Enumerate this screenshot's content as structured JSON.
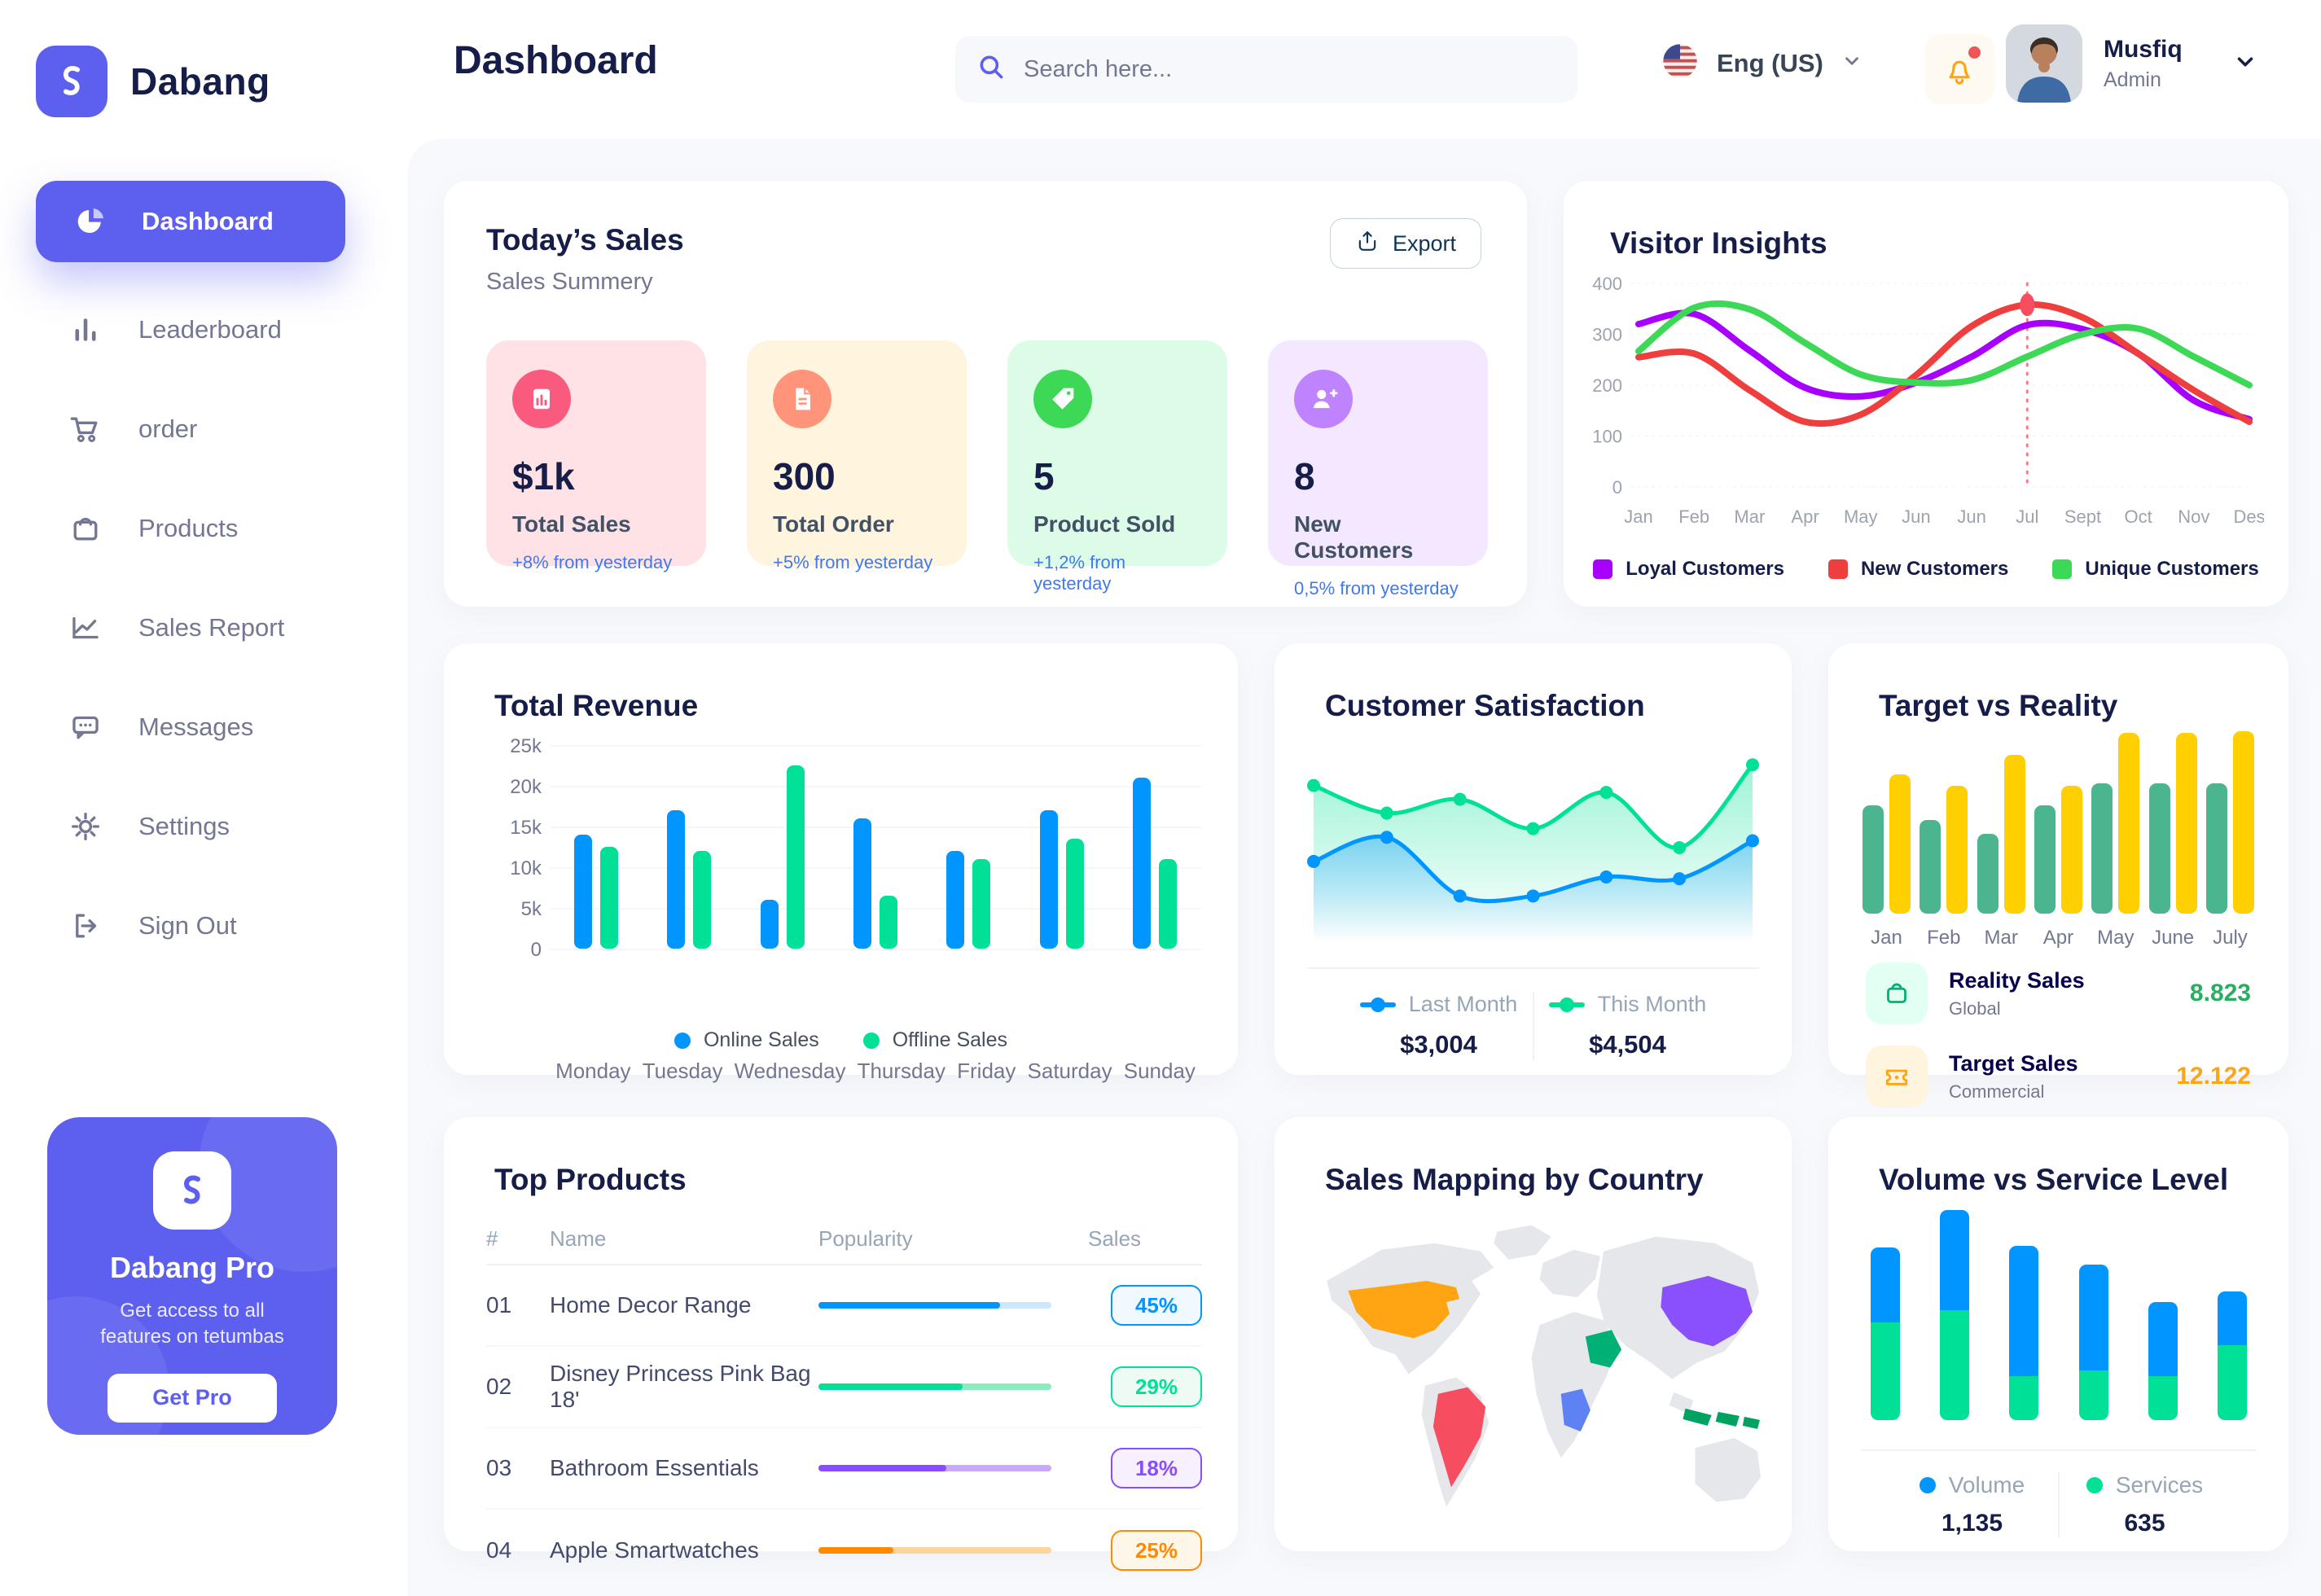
{
  "app": {
    "accent": "#5D5FEF",
    "navy": "#151D48",
    "panel_bg": "#F8F9FC"
  },
  "sidebar": {
    "logo_text": "Dabang",
    "items": [
      {
        "label": "Dashboard",
        "icon": "pie",
        "active": true
      },
      {
        "label": "Leaderboard",
        "icon": "bars",
        "active": false
      },
      {
        "label": "order",
        "icon": "cart",
        "active": false
      },
      {
        "label": "Products",
        "icon": "bag",
        "active": false
      },
      {
        "label": "Sales Report",
        "icon": "chart",
        "active": false
      },
      {
        "label": "Messages",
        "icon": "chat",
        "active": false
      },
      {
        "label": "Settings",
        "icon": "gear",
        "active": false
      },
      {
        "label": "Sign Out",
        "icon": "logout",
        "active": false
      }
    ],
    "pro_card": {
      "title": "Dabang Pro",
      "subtitle": "Get access to all features on tetumbas",
      "button": "Get Pro"
    }
  },
  "header": {
    "title": "Dashboard",
    "search_placeholder": "Search here...",
    "language": "Eng (US)",
    "user": {
      "name": "Musfiq",
      "role": "Admin"
    }
  },
  "todays_sales": {
    "title": "Today’s Sales",
    "subtitle": "Sales Summery",
    "export_label": "Export",
    "cards": [
      {
        "value": "$1k",
        "label": "Total Sales",
        "delta": "+8% from yesterday",
        "bg": "#FFE2E5",
        "icon_bg": "#FA5A7D",
        "icon": "chart-doc"
      },
      {
        "value": "300",
        "label": "Total Order",
        "delta": "+5% from yesterday",
        "bg": "#FFF4DE",
        "icon_bg": "#FF947A",
        "icon": "file"
      },
      {
        "value": "5",
        "label": "Product Sold",
        "delta": "+1,2% from yesterday",
        "bg": "#DCFCE7",
        "icon_bg": "#3CD856",
        "icon": "tag"
      },
      {
        "value": "8",
        "label": "New Customers",
        "delta": "0,5% from yesterday",
        "bg": "#F3E8FF",
        "icon_bg": "#BF83FF",
        "icon": "user-plus"
      }
    ]
  },
  "chart_data": [
    {
      "name": "visitor_insights",
      "type": "line",
      "title": "Visitor Insights",
      "x_labels": [
        "Jan",
        "Feb",
        "Mar",
        "Apr",
        "May",
        "Jun",
        "Jun",
        "Jul",
        "Sept",
        "Oct",
        "Nov",
        "Des"
      ],
      "ylim": [
        0,
        400
      ],
      "yticks": [
        0,
        100,
        200,
        300,
        400
      ],
      "grid": true,
      "legend_position": "bottom",
      "series": [
        {
          "name": "Loyal Customers",
          "color": "#A700FF",
          "values": [
            320,
            340,
            268,
            195,
            178,
            205,
            256,
            318,
            310,
            262,
            170,
            133
          ]
        },
        {
          "name": "New Customers",
          "color": "#EF3E3E",
          "values": [
            255,
            262,
            190,
            128,
            142,
            220,
            316,
            358,
            333,
            262,
            190,
            128
          ]
        },
        {
          "name": "Unique Customers",
          "color": "#3CD856",
          "values": [
            267,
            352,
            349,
            283,
            221,
            205,
            210,
            256,
            300,
            311,
            256,
            200
          ]
        }
      ],
      "annotation": {
        "x_index": 7,
        "x_label": "Jul",
        "series": "New Customers",
        "value": 358,
        "marker_color": "#F64E60"
      }
    },
    {
      "name": "total_revenue",
      "type": "bar",
      "title": "Total Revenue",
      "categories": [
        "Monday",
        "Tuesday",
        "Wednesday",
        "Thursday",
        "Friday",
        "Saturday",
        "Sunday"
      ],
      "ylim": [
        0,
        25000
      ],
      "yticks": [
        0,
        5000,
        10000,
        15000,
        20000,
        25000
      ],
      "ytick_labels": [
        "0",
        "5k",
        "10k",
        "15k",
        "20k",
        "25k"
      ],
      "legend_position": "bottom",
      "series": [
        {
          "name": "Online Sales",
          "color": "#0095FF",
          "values": [
            14000,
            17000,
            6000,
            16000,
            12000,
            17000,
            21000
          ]
        },
        {
          "name": "Offline Sales",
          "color": "#00E096",
          "values": [
            12500,
            12000,
            22500,
            6500,
            11000,
            13500,
            11000
          ]
        }
      ]
    },
    {
      "name": "customer_satisfaction",
      "type": "area",
      "title": "Customer Satisfaction",
      "ylim": [
        0,
        100
      ],
      "legend_position": "bottom",
      "series": [
        {
          "name": "Last Month",
          "color": "#0095FF",
          "total": "$3,004",
          "values": [
            34,
            48,
            14,
            14,
            25,
            24,
            46
          ]
        },
        {
          "name": "This Month",
          "color": "#00E096",
          "total": "$4,504",
          "values": [
            78,
            62,
            70,
            53,
            74,
            42,
            90
          ]
        }
      ]
    },
    {
      "name": "target_vs_reality",
      "type": "bar",
      "title": "Target vs Reality",
      "categories": [
        "Jan",
        "Feb",
        "Mar",
        "Apr",
        "May",
        "June",
        "July"
      ],
      "ylim": [
        0,
        14
      ],
      "series": [
        {
          "name": "Reality Sales",
          "color": "#4AB58E",
          "values": [
            8.3,
            7.2,
            6.1,
            8.3,
            10,
            10,
            10
          ]
        },
        {
          "name": "Target Sales",
          "color": "#FFCF00",
          "values": [
            10.7,
            9.8,
            12.2,
            9.8,
            13.9,
            13.9,
            14
          ]
        }
      ],
      "legend": [
        {
          "label": "Reality Sales",
          "sublabel": "Global",
          "value": "8.823",
          "value_color": "#27AE60",
          "icon": "bag-solid",
          "icon_color": "#00B074",
          "icon_bg": "#E2FFF3"
        },
        {
          "label": "Target Sales",
          "sublabel": "Commercial",
          "value": "12.122",
          "value_color": "#FFA412",
          "icon": "ticket",
          "icon_color": "#FFA412",
          "icon_bg": "#FFF4DE"
        }
      ]
    },
    {
      "name": "top_products",
      "type": "table",
      "title": "Top Products",
      "columns": [
        "#",
        "Name",
        "Popularity",
        "Sales"
      ],
      "rows": [
        {
          "id": "01",
          "name": "Home Decor Range",
          "popularity": 78,
          "sales": "45%",
          "color": "#0095FF",
          "track": "#CDE7FF",
          "badge_bg": "#F0F9FF"
        },
        {
          "id": "02",
          "name": "Disney Princess Pink Bag 18'",
          "popularity": 62,
          "sales": "29%",
          "color": "#00E096",
          "track": "#8CECC0",
          "badge_bg": "#EEFBF4"
        },
        {
          "id": "03",
          "name": "Bathroom Essentials",
          "popularity": 55,
          "sales": "18%",
          "color": "#884DFF",
          "track": "#C9A9F9",
          "badge_bg": "#F6F0FF"
        },
        {
          "id": "04",
          "name": "Apple Smartwatches",
          "popularity": 32,
          "sales": "25%",
          "color": "#FF8900",
          "track": "#FFD59E",
          "badge_bg": "#FFF6EA"
        }
      ]
    },
    {
      "name": "sales_mapping",
      "type": "map",
      "title": "Sales Mapping by Country",
      "base_color": "#E6E7EB",
      "countries": [
        {
          "name": "United States",
          "color": "#FFA412"
        },
        {
          "name": "Brazil",
          "color": "#F64E60"
        },
        {
          "name": "Saudi Arabia",
          "color": "#00B074"
        },
        {
          "name": "Congo",
          "color": "#5E81F4"
        },
        {
          "name": "China",
          "color": "#8950FC"
        },
        {
          "name": "Indonesia",
          "color": "#00A261"
        }
      ]
    },
    {
      "name": "volume_vs_service",
      "type": "bar-stacked",
      "title": "Volume vs Service Level",
      "legend_position": "bottom",
      "series": [
        {
          "name": "Volume",
          "color": "#0095FF",
          "total": "1,135",
          "values": [
            36,
            48,
            63,
            51,
            36,
            26
          ]
        },
        {
          "name": "Services",
          "color": "#00E096",
          "total": "635",
          "values": [
            47,
            53,
            21,
            24,
            21,
            36
          ]
        }
      ]
    }
  ]
}
